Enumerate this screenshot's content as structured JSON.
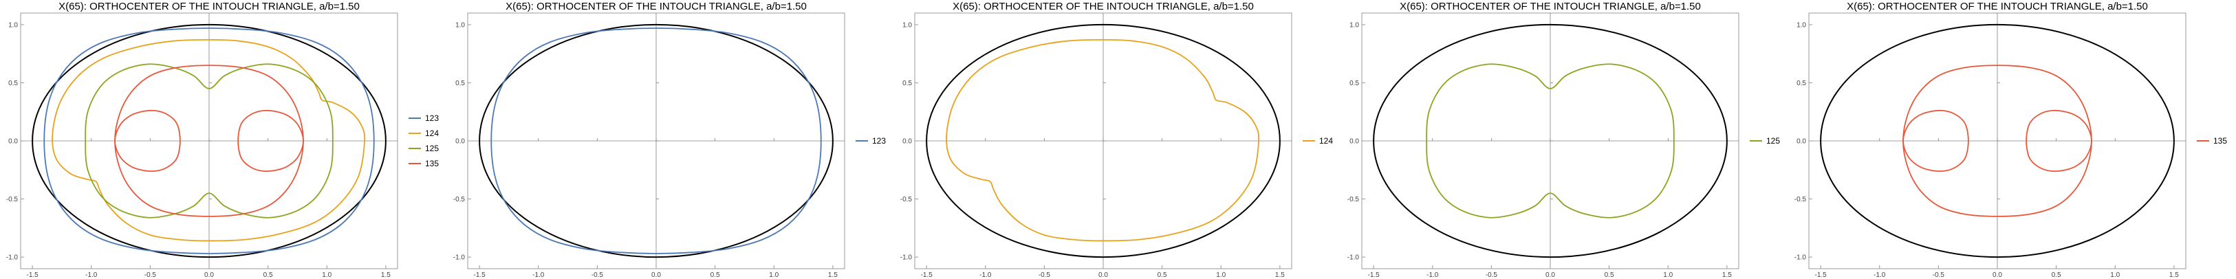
{
  "colors": {
    "123": "#4e79b7",
    "124": "#e8a21c",
    "125": "#8ca51f",
    "135": "#e8573a",
    "ellipse": "#000000",
    "frame": "#999999",
    "axis": "#808080"
  },
  "chart_data": [
    {
      "type": "line",
      "title": "X(65): ORTHOCENTER OF THE INTOUCH TRIANGLE, a/b=1.50",
      "xlim": [
        -1.6,
        1.6
      ],
      "ylim": [
        -1.1,
        1.1
      ],
      "xticks": [
        "-1.5",
        "-1.0",
        "-0.5",
        "0.0",
        "0.5",
        "1.0",
        "1.5"
      ],
      "yticks": [
        "-1.0",
        "-0.5",
        "0.0",
        "0.5",
        "1.0"
      ],
      "ellipse": {
        "a": 1.5,
        "b": 1.0
      },
      "legend_position": "right",
      "series": [
        {
          "name": "123",
          "curve": "123"
        },
        {
          "name": "124",
          "curve": "124"
        },
        {
          "name": "125",
          "curve": "125"
        },
        {
          "name": "135",
          "curve": "135"
        }
      ]
    },
    {
      "type": "line",
      "title": "X(65): ORTHOCENTER OF THE INTOUCH TRIANGLE, a/b=1.50",
      "xlim": [
        -1.6,
        1.6
      ],
      "ylim": [
        -1.1,
        1.1
      ],
      "xticks": [
        "-1.5",
        "-1.0",
        "-0.5",
        "0.0",
        "0.5",
        "1.0",
        "1.5"
      ],
      "yticks": [
        "-1.0",
        "-0.5",
        "0.0",
        "0.5",
        "1.0"
      ],
      "ellipse": {
        "a": 1.5,
        "b": 1.0
      },
      "legend_position": "right",
      "series": [
        {
          "name": "123",
          "curve": "123"
        }
      ]
    },
    {
      "type": "line",
      "title": "X(65): ORTHOCENTER OF THE INTOUCH TRIANGLE, a/b=1.50",
      "xlim": [
        -1.6,
        1.6
      ],
      "ylim": [
        -1.1,
        1.1
      ],
      "xticks": [
        "-1.5",
        "-1.0",
        "-0.5",
        "0.0",
        "0.5",
        "1.0",
        "1.5"
      ],
      "yticks": [
        "-1.0",
        "-0.5",
        "0.0",
        "0.5",
        "1.0"
      ],
      "ellipse": {
        "a": 1.5,
        "b": 1.0
      },
      "legend_position": "right",
      "series": [
        {
          "name": "124",
          "curve": "124"
        }
      ]
    },
    {
      "type": "line",
      "title": "X(65): ORTHOCENTER OF THE INTOUCH TRIANGLE, a/b=1.50",
      "xlim": [
        -1.6,
        1.6
      ],
      "ylim": [
        -1.1,
        1.1
      ],
      "xticks": [
        "-1.5",
        "-1.0",
        "-0.5",
        "0.0",
        "0.5",
        "1.0",
        "1.5"
      ],
      "yticks": [
        "-1.0",
        "-0.5",
        "0.0",
        "0.5",
        "1.0"
      ],
      "ellipse": {
        "a": 1.5,
        "b": 1.0
      },
      "legend_position": "right",
      "series": [
        {
          "name": "125",
          "curve": "125"
        }
      ]
    },
    {
      "type": "line",
      "title": "X(65): ORTHOCENTER OF THE INTOUCH TRIANGLE, a/b=1.50",
      "xlim": [
        -1.6,
        1.6
      ],
      "ylim": [
        -1.1,
        1.1
      ],
      "xticks": [
        "-1.5",
        "-1.0",
        "-0.5",
        "0.0",
        "0.5",
        "1.0",
        "1.5"
      ],
      "yticks": [
        "-1.0",
        "-0.5",
        "0.0",
        "0.5",
        "1.0"
      ],
      "ellipse": {
        "a": 1.5,
        "b": 1.0
      },
      "legend_position": "right",
      "series": [
        {
          "name": "135",
          "curve": "135"
        }
      ]
    }
  ],
  "curves": {
    "123": [
      [
        1.4,
        0.0
      ],
      [
        1.37,
        0.3
      ],
      [
        1.28,
        0.53
      ],
      [
        1.12,
        0.72
      ],
      [
        0.9,
        0.85
      ],
      [
        0.6,
        0.93
      ],
      [
        0.3,
        0.96
      ],
      [
        0.0,
        0.97
      ],
      [
        -0.3,
        0.96
      ],
      [
        -0.6,
        0.93
      ],
      [
        -0.9,
        0.85
      ],
      [
        -1.12,
        0.72
      ],
      [
        -1.28,
        0.53
      ],
      [
        -1.37,
        0.3
      ],
      [
        -1.4,
        0.0
      ],
      [
        -1.37,
        -0.3
      ],
      [
        -1.28,
        -0.53
      ],
      [
        -1.12,
        -0.72
      ],
      [
        -0.9,
        -0.85
      ],
      [
        -0.6,
        -0.93
      ],
      [
        -0.3,
        -0.96
      ],
      [
        0.0,
        -0.97
      ],
      [
        0.3,
        -0.96
      ],
      [
        0.6,
        -0.93
      ],
      [
        0.9,
        -0.85
      ],
      [
        1.12,
        -0.72
      ],
      [
        1.28,
        -0.53
      ],
      [
        1.37,
        -0.3
      ],
      [
        1.4,
        0.0
      ]
    ],
    "124": [
      [
        1.32,
        0.0
      ],
      [
        1.29,
        0.14
      ],
      [
        1.2,
        0.25
      ],
      [
        1.05,
        0.33
      ],
      [
        0.96,
        0.35
      ],
      [
        0.93,
        0.42
      ],
      [
        0.86,
        0.55
      ],
      [
        0.7,
        0.71
      ],
      [
        0.5,
        0.81
      ],
      [
        0.25,
        0.86
      ],
      [
        0.0,
        0.87
      ],
      [
        -0.3,
        0.86
      ],
      [
        -0.6,
        0.81
      ],
      [
        -0.9,
        0.71
      ],
      [
        -1.12,
        0.55
      ],
      [
        -1.27,
        0.32
      ],
      [
        -1.33,
        0.05
      ],
      [
        -1.3,
        -0.15
      ],
      [
        -1.18,
        -0.28
      ],
      [
        -1.04,
        -0.33
      ],
      [
        -0.96,
        -0.35
      ],
      [
        -0.93,
        -0.42
      ],
      [
        -0.86,
        -0.55
      ],
      [
        -0.7,
        -0.71
      ],
      [
        -0.5,
        -0.81
      ],
      [
        -0.25,
        -0.85
      ],
      [
        0.0,
        -0.86
      ],
      [
        0.3,
        -0.85
      ],
      [
        0.6,
        -0.8
      ],
      [
        0.9,
        -0.7
      ],
      [
        1.12,
        -0.53
      ],
      [
        1.27,
        -0.3
      ],
      [
        1.32,
        0.0
      ]
    ],
    "125": [
      [
        1.05,
        0.0
      ],
      [
        1.03,
        0.25
      ],
      [
        0.92,
        0.47
      ],
      [
        0.75,
        0.6
      ],
      [
        0.52,
        0.66
      ],
      [
        0.3,
        0.63
      ],
      [
        0.13,
        0.56
      ],
      [
        0.0,
        0.45
      ],
      [
        -0.13,
        0.56
      ],
      [
        -0.3,
        0.63
      ],
      [
        -0.52,
        0.66
      ],
      [
        -0.75,
        0.6
      ],
      [
        -0.92,
        0.47
      ],
      [
        -1.03,
        0.25
      ],
      [
        -1.05,
        0.0
      ],
      [
        -1.03,
        -0.25
      ],
      [
        -0.92,
        -0.47
      ],
      [
        -0.75,
        -0.6
      ],
      [
        -0.52,
        -0.66
      ],
      [
        -0.3,
        -0.63
      ],
      [
        -0.13,
        -0.56
      ],
      [
        0.0,
        -0.45
      ],
      [
        0.13,
        -0.56
      ],
      [
        0.3,
        -0.63
      ],
      [
        0.52,
        -0.66
      ],
      [
        0.75,
        -0.6
      ],
      [
        0.92,
        -0.47
      ],
      [
        1.03,
        -0.25
      ],
      [
        1.05,
        0.0
      ]
    ],
    "135": [
      [
        0.8,
        0.0
      ],
      [
        0.76,
        0.23
      ],
      [
        0.66,
        0.42
      ],
      [
        0.5,
        0.56
      ],
      [
        0.28,
        0.63
      ],
      [
        0.0,
        0.65
      ],
      [
        -0.28,
        0.63
      ],
      [
        -0.5,
        0.56
      ],
      [
        -0.66,
        0.42
      ],
      [
        -0.76,
        0.23
      ],
      [
        -0.8,
        0.0
      ],
      [
        -0.76,
        -0.23
      ],
      [
        -0.66,
        -0.42
      ],
      [
        -0.5,
        -0.56
      ],
      [
        -0.28,
        -0.63
      ],
      [
        0.0,
        -0.65
      ],
      [
        0.28,
        -0.63
      ],
      [
        0.5,
        -0.56
      ],
      [
        0.66,
        -0.42
      ],
      [
        0.76,
        -0.23
      ],
      [
        0.8,
        0.0
      ]
    ],
    "135b": [
      [
        0.8,
        0.0
      ],
      [
        0.76,
        0.13
      ],
      [
        0.68,
        0.21
      ],
      [
        0.58,
        0.25
      ],
      [
        0.46,
        0.26
      ],
      [
        0.36,
        0.23
      ],
      [
        0.28,
        0.16
      ],
      [
        0.25,
        0.06
      ],
      [
        0.25,
        -0.06
      ],
      [
        0.28,
        -0.16
      ],
      [
        0.36,
        -0.23
      ],
      [
        0.46,
        -0.26
      ],
      [
        0.58,
        -0.25
      ],
      [
        0.68,
        -0.21
      ],
      [
        0.76,
        -0.13
      ],
      [
        0.8,
        0.0
      ]
    ],
    "135c": [
      [
        -0.8,
        0.0
      ],
      [
        -0.76,
        0.13
      ],
      [
        -0.68,
        0.21
      ],
      [
        -0.58,
        0.25
      ],
      [
        -0.46,
        0.26
      ],
      [
        -0.36,
        0.23
      ],
      [
        -0.28,
        0.16
      ],
      [
        -0.25,
        0.06
      ],
      [
        -0.25,
        -0.06
      ],
      [
        -0.28,
        -0.16
      ],
      [
        -0.36,
        -0.23
      ],
      [
        -0.46,
        -0.26
      ],
      [
        -0.58,
        -0.25
      ],
      [
        -0.68,
        -0.21
      ],
      [
        -0.76,
        -0.13
      ],
      [
        -0.8,
        0.0
      ]
    ]
  }
}
